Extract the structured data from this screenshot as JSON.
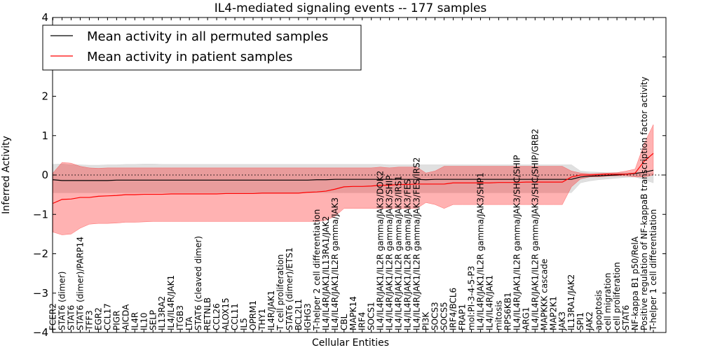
{
  "chart_data": {
    "type": "line",
    "title": "IL4-mediated signaling events -- 177 samples",
    "xlabel": "Cellular Entities",
    "ylabel": "Inferred Activity",
    "ylim": [
      -4,
      4
    ],
    "yticks": [
      -4,
      -3,
      -2,
      -1,
      0,
      1,
      2,
      3,
      4
    ],
    "legend": {
      "placement": "top-left",
      "entries": [
        "Mean activity in all permuted samples",
        "Mean activity in patient samples"
      ]
    },
    "categories": [
      "FCER2",
      "STAT6 (dimer)",
      "STAT6",
      "STAT6 (dimer)/PARP14",
      "TFF3",
      "EGR2",
      "CCL17",
      "PIGR",
      "AICDA",
      "IL4R",
      "IL10",
      "SELP",
      "IL13RA2",
      "IL4/IL4R/JAK1",
      "ITGB3",
      "LTA",
      "STAT6 (cleaved dimer)",
      "RETNLB",
      "CCL26",
      "ALOX15",
      "CCL11",
      "IL5",
      "OPRM1",
      "THY1",
      "IL4R/JAK1",
      "T cell proliferation",
      "STAT6 (dimer)/ETS1",
      "BCL2L1",
      "IGHG3",
      "T-helper 2 cell differentiation",
      "IL4/IL4R/JAK1/IL13RA1/JAK2",
      "IL4/IL4R/JAK1/IL2R gamma/JAK3",
      "CBL",
      "MAPK14",
      "IRF4",
      "SOCS1",
      "IL4/IL4R/JAK1/IL2R gamma/JAK3/DOK2",
      "IL4/IL4R/JAK1/IL2R gamma/JAK3/SHIP",
      "IL4/IL4R/JAK1/IL2R gamma/JAK3/IRS1",
      "IL4/IL4R/JAK1/IL2R gamma/JAK3/FES",
      "IL4/IL4R/JAK1/IL2R gamma/JAK3/FES/IRS2",
      "PI3K",
      "SOCS3",
      "SOCS5",
      "IRF4/BCL6",
      "FRAP1",
      "mol:PI-3-4-5-P3",
      "IL4/IL4R/JAK1/IL2R gamma/JAK3/SHP1",
      "IL4/IL4R/JAK1",
      "mitosis",
      "RPS6KB1",
      "IL4/IL4R/JAK1/IL2R gamma/JAK3/SHC/SHIP",
      "ARG1",
      "IL4/IL4R/JAK1/IL2R gamma/JAK3/SHC/SHIP/GRB2",
      "MAPKKK cascade",
      "MAP2K1",
      "JAK3",
      "IL13RA1/JAK2",
      "SPI1",
      "JAK2",
      "apoptosis",
      "cell migration",
      "cell proliferation",
      "STAT6",
      "NF-kappa B1 p50/RelA",
      "Positive regulation of NF-kappaB transcription factor activity",
      "T-helper 1 cell differentiation"
    ],
    "series": [
      {
        "name": "Mean activity in all permuted samples",
        "color": "#000000",
        "band_color": "#bbbbbb",
        "values": [
          -0.12,
          -0.14,
          -0.14,
          -0.14,
          -0.14,
          -0.14,
          -0.14,
          -0.13,
          -0.13,
          -0.13,
          -0.13,
          -0.13,
          -0.13,
          -0.13,
          -0.13,
          -0.13,
          -0.13,
          -0.13,
          -0.13,
          -0.13,
          -0.13,
          -0.13,
          -0.13,
          -0.13,
          -0.13,
          -0.13,
          -0.13,
          -0.13,
          -0.13,
          -0.12,
          -0.12,
          -0.11,
          -0.11,
          -0.11,
          -0.11,
          -0.11,
          -0.11,
          -0.11,
          -0.11,
          -0.11,
          -0.11,
          -0.12,
          -0.11,
          -0.11,
          -0.11,
          -0.11,
          -0.11,
          -0.11,
          -0.11,
          -0.11,
          -0.11,
          -0.11,
          -0.11,
          -0.11,
          -0.11,
          -0.11,
          -0.11,
          -0.11,
          -0.05,
          -0.03,
          -0.02,
          -0.01,
          0.0,
          0.02,
          0.04,
          0.07,
          0.12
        ],
        "upper": [
          0.27,
          0.28,
          0.26,
          0.26,
          0.25,
          0.25,
          0.26,
          0.26,
          0.27,
          0.27,
          0.28,
          0.28,
          0.27,
          0.27,
          0.27,
          0.27,
          0.27,
          0.27,
          0.27,
          0.27,
          0.27,
          0.27,
          0.27,
          0.27,
          0.27,
          0.27,
          0.27,
          0.27,
          0.27,
          0.27,
          0.27,
          0.27,
          0.27,
          0.27,
          0.27,
          0.27,
          0.27,
          0.26,
          0.26,
          0.26,
          0.26,
          0.26,
          0.26,
          0.26,
          0.26,
          0.26,
          0.26,
          0.26,
          0.26,
          0.26,
          0.26,
          0.26,
          0.26,
          0.26,
          0.26,
          0.26,
          0.26,
          0.26,
          0.1,
          0.08,
          0.07,
          0.06,
          0.06,
          0.06,
          0.05,
          0.05,
          0.05
        ],
        "lower": [
          -0.45,
          -0.45,
          -0.45,
          -0.45,
          -0.45,
          -0.45,
          -0.45,
          -0.45,
          -0.45,
          -0.45,
          -0.45,
          -0.45,
          -0.45,
          -0.45,
          -0.45,
          -0.45,
          -0.45,
          -0.45,
          -0.45,
          -0.45,
          -0.45,
          -0.45,
          -0.45,
          -0.45,
          -0.45,
          -0.45,
          -0.45,
          -0.45,
          -0.45,
          -0.45,
          -0.45,
          -0.45,
          -0.45,
          -0.45,
          -0.45,
          -0.45,
          -0.45,
          -0.45,
          -0.45,
          -0.45,
          -0.45,
          -0.45,
          -0.45,
          -0.45,
          -0.45,
          -0.45,
          -0.45,
          -0.45,
          -0.45,
          -0.45,
          -0.45,
          -0.45,
          -0.45,
          -0.45,
          -0.45,
          -0.45,
          -0.45,
          -0.45,
          -0.2,
          -0.15,
          -0.12,
          -0.1,
          -0.08,
          -0.06,
          -0.05,
          -0.12,
          -0.2
        ]
      },
      {
        "name": "Mean activity in patient samples",
        "color": "#ff0000",
        "band_color": "#ff0000",
        "values": [
          -0.72,
          -0.62,
          -0.61,
          -0.57,
          -0.57,
          -0.54,
          -0.53,
          -0.52,
          -0.5,
          -0.5,
          -0.49,
          -0.49,
          -0.49,
          -0.48,
          -0.48,
          -0.48,
          -0.48,
          -0.48,
          -0.48,
          -0.47,
          -0.47,
          -0.47,
          -0.47,
          -0.46,
          -0.46,
          -0.46,
          -0.46,
          -0.46,
          -0.44,
          -0.43,
          -0.41,
          -0.36,
          -0.3,
          -0.29,
          -0.29,
          -0.28,
          -0.26,
          -0.26,
          -0.24,
          -0.24,
          -0.23,
          -0.23,
          -0.23,
          -0.23,
          -0.2,
          -0.2,
          -0.2,
          -0.2,
          -0.2,
          -0.19,
          -0.19,
          -0.19,
          -0.18,
          -0.18,
          -0.18,
          -0.18,
          -0.18,
          -0.05,
          0.0,
          0.0,
          0.01,
          0.02,
          0.02,
          0.02,
          0.05,
          0.35,
          0.55
        ],
        "upper": [
          0.05,
          0.32,
          0.3,
          0.22,
          0.18,
          0.17,
          0.18,
          0.18,
          0.18,
          0.18,
          0.18,
          0.18,
          0.18,
          0.18,
          0.18,
          0.18,
          0.18,
          0.18,
          0.18,
          0.18,
          0.18,
          0.18,
          0.18,
          0.18,
          0.18,
          0.18,
          0.18,
          0.18,
          0.18,
          0.18,
          0.18,
          0.18,
          0.18,
          0.18,
          0.18,
          0.18,
          0.2,
          0.18,
          0.2,
          0.2,
          0.2,
          0.05,
          0.1,
          0.22,
          0.22,
          0.22,
          0.22,
          0.22,
          0.22,
          0.22,
          0.22,
          0.22,
          0.22,
          0.22,
          0.22,
          0.22,
          0.22,
          0.1,
          0.05,
          0.03,
          0.04,
          0.05,
          0.06,
          0.1,
          0.15,
          0.8,
          1.28
        ],
        "lower": [
          -1.45,
          -1.52,
          -1.5,
          -1.35,
          -1.25,
          -1.23,
          -1.23,
          -1.22,
          -1.2,
          -1.2,
          -1.19,
          -1.18,
          -1.18,
          -1.18,
          -1.18,
          -1.18,
          -1.18,
          -1.18,
          -1.18,
          -1.18,
          -1.18,
          -1.18,
          -1.18,
          -1.18,
          -1.18,
          -1.18,
          -1.18,
          -1.18,
          -1.18,
          -1.18,
          -1.15,
          -1.05,
          -0.85,
          -0.85,
          -0.85,
          -0.85,
          -0.85,
          -0.85,
          -0.85,
          -0.85,
          -0.85,
          -0.7,
          -0.75,
          -0.85,
          -0.75,
          -0.75,
          -0.75,
          -0.75,
          -0.75,
          -0.75,
          -0.75,
          -0.75,
          -0.75,
          -0.75,
          -0.75,
          -0.75,
          -0.75,
          -0.3,
          -0.1,
          -0.05,
          -0.05,
          -0.03,
          -0.02,
          -0.02,
          -0.05,
          -0.05,
          0.0
        ]
      }
    ]
  }
}
